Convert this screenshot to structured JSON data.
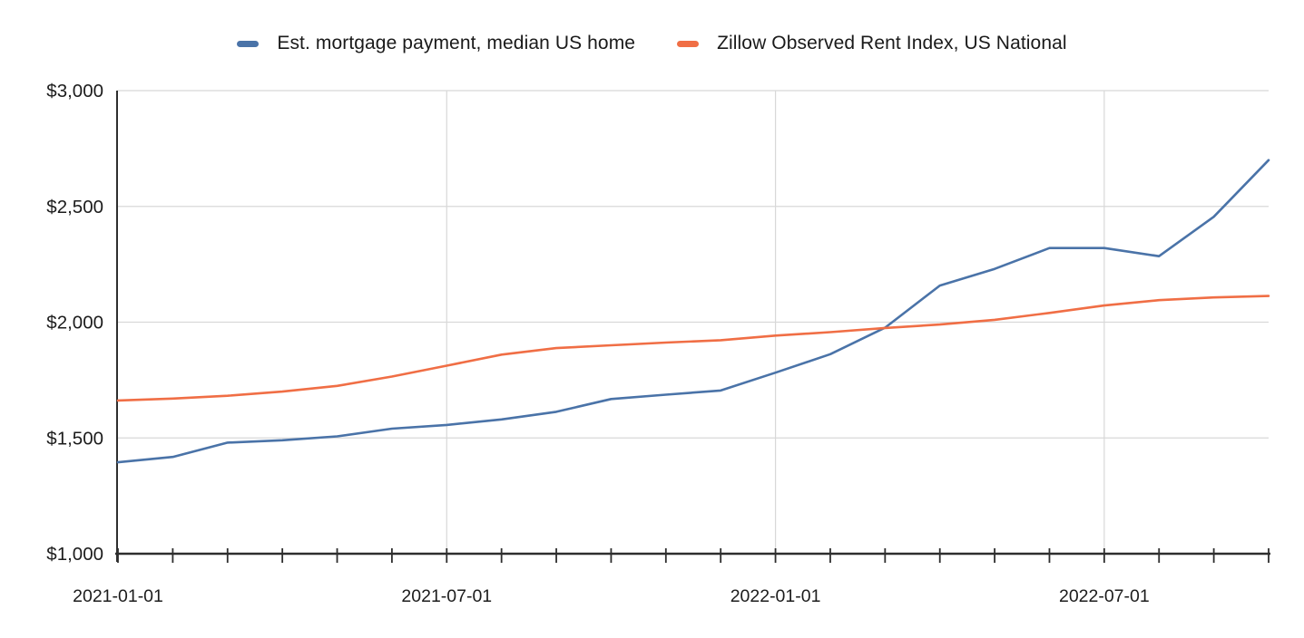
{
  "legend": {
    "items": [
      {
        "label": "Est. mortgage payment, median US home",
        "color": "#4a73a8"
      },
      {
        "label": "Zillow Observed Rent Index, US National",
        "color": "#f06e45"
      }
    ]
  },
  "chart_data": {
    "type": "line",
    "title": "",
    "xlabel": "",
    "ylabel": "",
    "x": [
      "2021-01-01",
      "2021-02-01",
      "2021-03-01",
      "2021-04-01",
      "2021-05-01",
      "2021-06-01",
      "2021-07-01",
      "2021-08-01",
      "2021-09-01",
      "2021-10-01",
      "2021-11-01",
      "2021-12-01",
      "2022-01-01",
      "2022-02-01",
      "2022-03-01",
      "2022-04-01",
      "2022-05-01",
      "2022-06-01",
      "2022-07-01",
      "2022-08-01",
      "2022-09-01",
      "2022-10-01"
    ],
    "series": [
      {
        "name": "Est. mortgage payment, median US home",
        "color": "#4a73a8",
        "values": [
          1395,
          1418,
          1480,
          1490,
          1507,
          1540,
          1556,
          1580,
          1613,
          1668,
          1687,
          1705,
          1782,
          1862,
          1976,
          2158,
          2230,
          2320,
          2320,
          2285,
          2455,
          2700
        ]
      },
      {
        "name": "Zillow Observed Rent Index, US National",
        "color": "#f06e45",
        "values": [
          1662,
          1670,
          1682,
          1700,
          1725,
          1765,
          1812,
          1860,
          1888,
          1900,
          1912,
          1922,
          1942,
          1957,
          1975,
          1990,
          2010,
          2040,
          2072,
          2095,
          2107,
          2113
        ]
      }
    ],
    "ylim": [
      1000,
      3000
    ],
    "yticks": [
      {
        "value": 1000,
        "label": "$1,000"
      },
      {
        "value": 1500,
        "label": "$1,500"
      },
      {
        "value": 2000,
        "label": "$2,000"
      },
      {
        "value": 2500,
        "label": "$2,500"
      },
      {
        "value": 3000,
        "label": "$3,000"
      }
    ],
    "xtick_labels": [
      {
        "index": 0,
        "label": "2021-01-01"
      },
      {
        "index": 6,
        "label": "2021-07-01"
      },
      {
        "index": 12,
        "label": "2022-01-01"
      },
      {
        "index": 18,
        "label": "2022-07-01"
      }
    ],
    "grid": {
      "h_values": [
        1500,
        2000,
        2500,
        3000
      ],
      "v_indices": [
        6,
        12,
        18
      ],
      "color": "#d8d8d8"
    },
    "axis_color": "#2e2e2e",
    "legend_position": "top"
  }
}
